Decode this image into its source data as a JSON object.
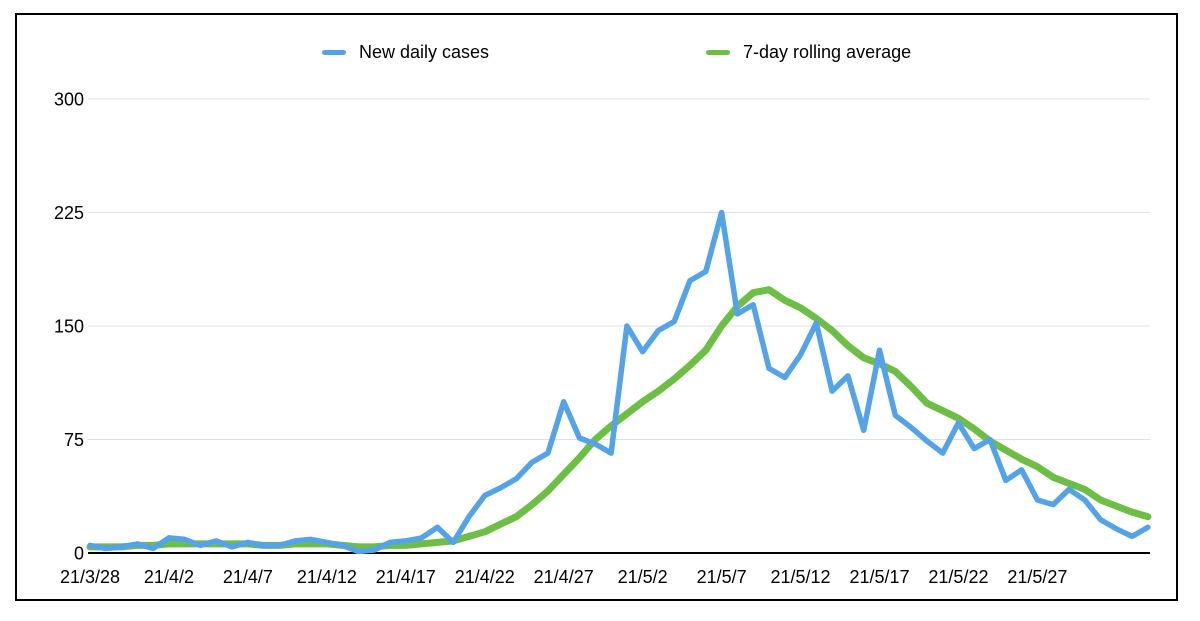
{
  "chart_data": {
    "type": "line",
    "title": "",
    "xlabel": "",
    "ylabel": "",
    "grid": true,
    "legend_position": "top",
    "ylim": [
      0,
      300
    ],
    "y_ticks": [
      0,
      75,
      150,
      225,
      300
    ],
    "x_tick_indices": [
      0,
      5,
      10,
      15,
      20,
      25,
      30,
      35,
      40,
      45,
      50,
      55,
      60
    ],
    "x_tick_labels": [
      "21/3/28",
      "21/4/2",
      "21/4/7",
      "21/4/12",
      "21/4/17",
      "21/4/22",
      "21/4/27",
      "21/5/2",
      "21/5/7",
      "21/5/12",
      "21/5/17",
      "21/5/22",
      "21/5/27"
    ],
    "x": [
      "21/3/28",
      "21/3/29",
      "21/3/30",
      "21/3/31",
      "21/4/1",
      "21/4/2",
      "21/4/3",
      "21/4/4",
      "21/4/5",
      "21/4/6",
      "21/4/7",
      "21/4/8",
      "21/4/9",
      "21/4/10",
      "21/4/11",
      "21/4/12",
      "21/4/13",
      "21/4/14",
      "21/4/15",
      "21/4/16",
      "21/4/17",
      "21/4/18",
      "21/4/19",
      "21/4/20",
      "21/4/21",
      "21/4/22",
      "21/4/23",
      "21/4/24",
      "21/4/25",
      "21/4/26",
      "21/4/27",
      "21/4/28",
      "21/4/29",
      "21/4/30",
      "21/5/1",
      "21/5/2",
      "21/5/3",
      "21/5/4",
      "21/5/5",
      "21/5/6",
      "21/5/7",
      "21/5/8",
      "21/5/9",
      "21/5/10",
      "21/5/11",
      "21/5/12",
      "21/5/13",
      "21/5/14",
      "21/5/15",
      "21/5/16",
      "21/5/17",
      "21/5/18",
      "21/5/19",
      "21/5/20",
      "21/5/21",
      "21/5/22",
      "21/5/23",
      "21/5/24",
      "21/5/25",
      "21/5/26",
      "21/5/27",
      "21/5/28",
      "21/5/29",
      "21/5/30",
      "21/5/31",
      "21/6/1",
      "21/6/2",
      "21/6/3"
    ],
    "series": [
      {
        "name": "New daily cases",
        "color": "#54a2e8",
        "values": [
          5,
          3,
          4,
          6,
          3,
          10,
          9,
          5,
          8,
          4,
          7,
          5,
          5,
          8,
          9,
          7,
          5,
          1,
          2,
          7,
          8,
          10,
          17,
          7,
          24,
          38,
          43,
          49,
          60,
          66,
          100,
          76,
          72,
          66,
          150,
          133,
          147,
          153,
          180,
          186,
          225,
          158,
          164,
          122,
          116,
          131,
          152,
          107,
          117,
          81,
          134,
          91,
          83,
          74,
          66,
          86,
          69,
          75,
          48,
          55,
          35,
          32,
          42,
          35,
          22,
          16,
          11,
          17
        ]
      },
      {
        "name": "7-day rolling average",
        "color": "#6dbe45",
        "values": [
          4,
          4,
          4,
          5,
          5,
          6,
          6,
          6,
          6,
          6,
          6,
          5,
          5,
          6,
          6,
          6,
          5,
          4,
          4,
          5,
          5,
          6,
          7,
          8,
          11,
          14,
          19,
          24,
          32,
          41,
          52,
          63,
          75,
          84,
          92,
          100,
          107,
          115,
          124,
          134,
          150,
          163,
          172,
          174,
          167,
          162,
          155,
          147,
          137,
          129,
          125,
          120,
          110,
          99,
          94,
          89,
          82,
          74,
          68,
          62,
          57,
          50,
          46,
          42,
          35,
          31,
          27,
          24
        ]
      }
    ],
    "colors": {
      "background": "#ffffff",
      "frame_border": "#000000",
      "gridline": "#e0e0e0",
      "axis_line": "#000000",
      "tick_text": "#000000"
    }
  }
}
